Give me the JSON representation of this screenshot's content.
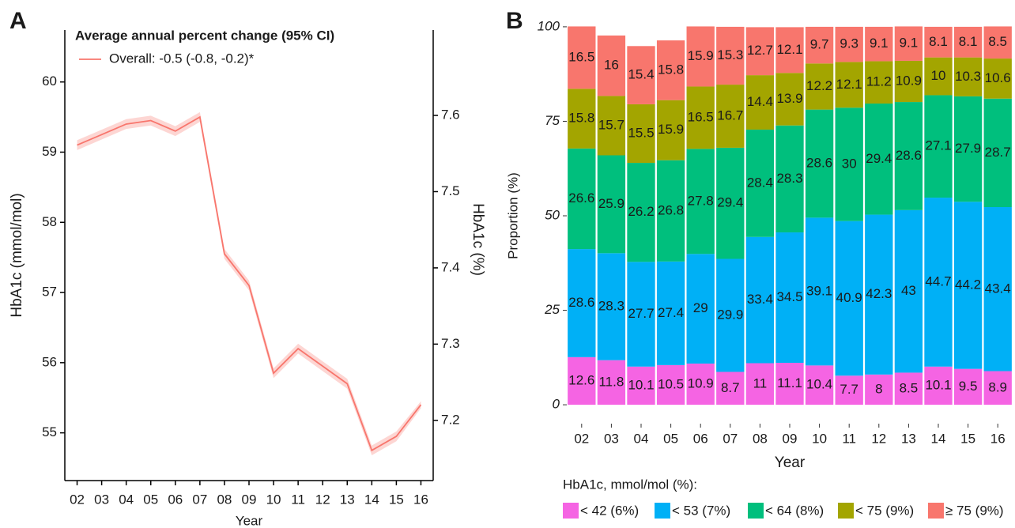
{
  "chart_data": [
    {
      "type": "line",
      "panel_label": "A",
      "legend_title": "Average annual percent change (95% CI)",
      "categories": [
        "02",
        "03",
        "04",
        "05",
        "06",
        "07",
        "08",
        "09",
        "10",
        "11",
        "12",
        "13",
        "14",
        "15",
        "16"
      ],
      "series": [
        {
          "name": "Overall: -0.5 (-0.8, -0.2)*",
          "color": "#f8766d",
          "values": [
            59.1,
            59.25,
            59.4,
            59.45,
            59.3,
            59.5,
            57.55,
            57.1,
            55.85,
            56.2,
            55.95,
            55.7,
            54.75,
            54.95,
            55.4
          ],
          "lower": [
            59.03,
            59.18,
            59.33,
            59.38,
            59.23,
            59.43,
            57.48,
            57.03,
            55.78,
            56.13,
            55.88,
            55.63,
            54.68,
            54.88,
            55.35
          ],
          "upper": [
            59.17,
            59.32,
            59.47,
            59.52,
            59.37,
            59.57,
            57.62,
            57.17,
            55.92,
            56.27,
            56.02,
            55.77,
            54.82,
            55.02,
            55.45
          ]
        }
      ],
      "ylim": [
        54.32,
        60.74
      ],
      "yticks": [
        55,
        56,
        57,
        58,
        59,
        60
      ],
      "y2lim": [
        7.121,
        7.712
      ],
      "y2ticks": [
        7.2,
        7.3,
        7.4,
        7.5,
        7.6
      ],
      "ylabel": "HbA1c (mmol/mol)",
      "y2label": "HbA1c (%)",
      "xlabel": "Year",
      "grid": false
    },
    {
      "type": "bar",
      "stacked": true,
      "panel_label": "B",
      "legend_title": "HbA1c, mmol/mol (%):",
      "legend": "bottom",
      "categories": [
        "02",
        "03",
        "04",
        "05",
        "06",
        "07",
        "08",
        "09",
        "10",
        "11",
        "12",
        "13",
        "14",
        "15",
        "16"
      ],
      "series": [
        {
          "name": "< 42 (6%)",
          "color": "#f564e3",
          "values": [
            12.6,
            11.8,
            10.1,
            10.5,
            10.9,
            8.7,
            11,
            11.1,
            10.4,
            7.7,
            8,
            8.5,
            10.1,
            9.5,
            8.9
          ]
        },
        {
          "name": "< 53 (7%)",
          "color": "#00b0f6",
          "values": [
            28.6,
            28.3,
            27.7,
            27.4,
            29,
            29.9,
            33.4,
            34.5,
            39.1,
            40.9,
            42.3,
            43,
            44.7,
            44.2,
            43.4
          ]
        },
        {
          "name": "< 64 (8%)",
          "color": "#00bf7d",
          "values": [
            26.6,
            25.9,
            26.2,
            26.8,
            27.8,
            29.4,
            28.4,
            28.3,
            28.6,
            30,
            29.4,
            28.6,
            27.1,
            27.9,
            28.7
          ]
        },
        {
          "name": "< 75 (9%)",
          "color": "#a3a500",
          "values": [
            15.8,
            15.7,
            15.5,
            15.9,
            16.5,
            16.7,
            14.4,
            13.9,
            12.2,
            12.1,
            11.2,
            10.9,
            10,
            10.3,
            10.6
          ]
        },
        {
          "name": "≥ 75 (9%)",
          "color": "#f8766d",
          "values": [
            16.5,
            16,
            15.4,
            15.8,
            15.9,
            15.3,
            12.7,
            12.1,
            9.7,
            9.3,
            9.1,
            9.1,
            8.1,
            8.1,
            8.5
          ]
        }
      ],
      "ylim": [
        -5,
        105
      ],
      "yticks": [
        0,
        25,
        50,
        75,
        100
      ],
      "ylabel": "Proportion (%)",
      "xlabel": "Year",
      "grid": false
    }
  ]
}
